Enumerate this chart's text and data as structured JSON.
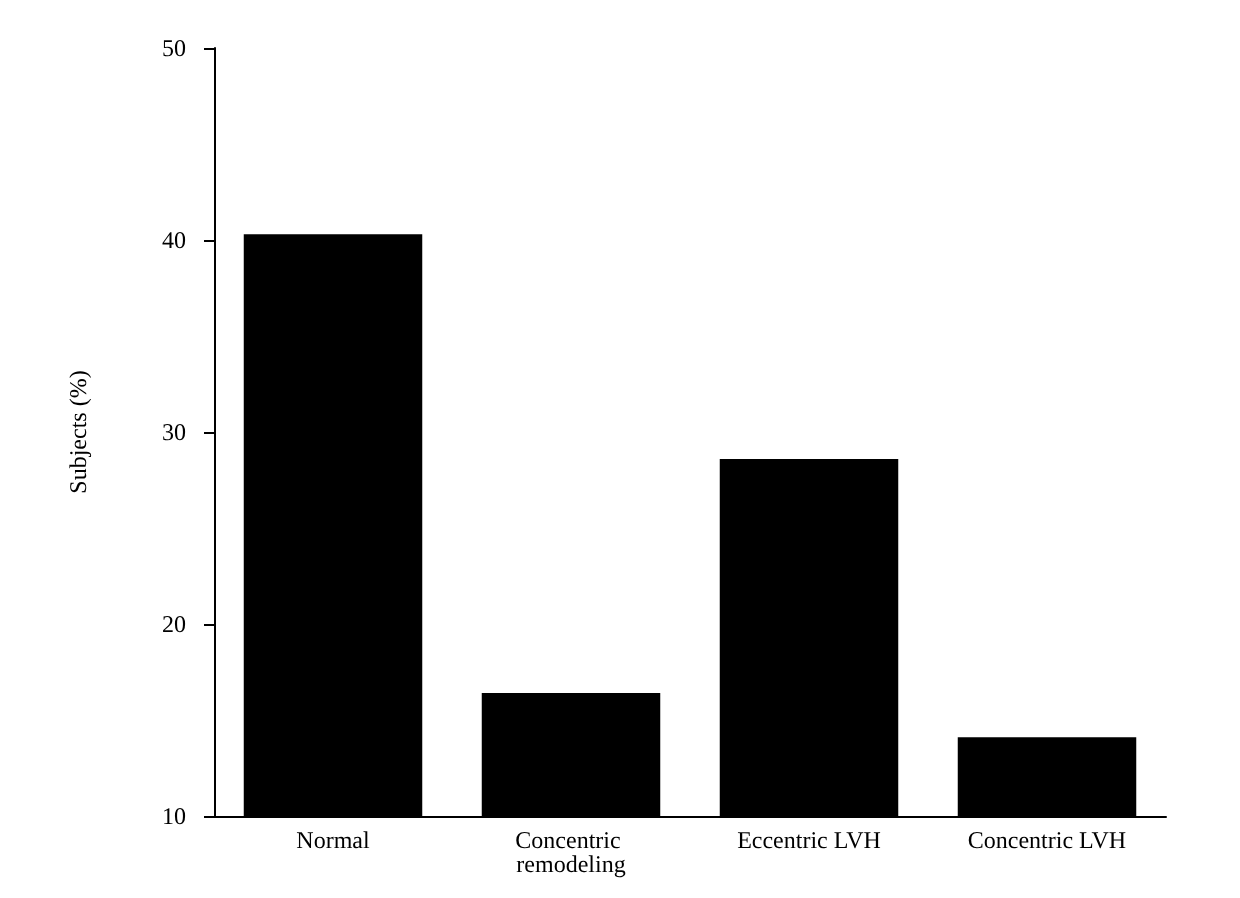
{
  "chart_data": {
    "type": "bar",
    "ylabel": "Subjects (%)",
    "categories": [
      "Normal",
      "Concentric remodeling",
      "Eccentric LVH",
      "Concentric LVH"
    ],
    "values": [
      40.3,
      16.4,
      28.6,
      14.1
    ],
    "color": "#000000",
    "ylim": [
      10,
      50
    ],
    "yticks": [
      10,
      20,
      30,
      40,
      50
    ],
    "grid": false
  }
}
